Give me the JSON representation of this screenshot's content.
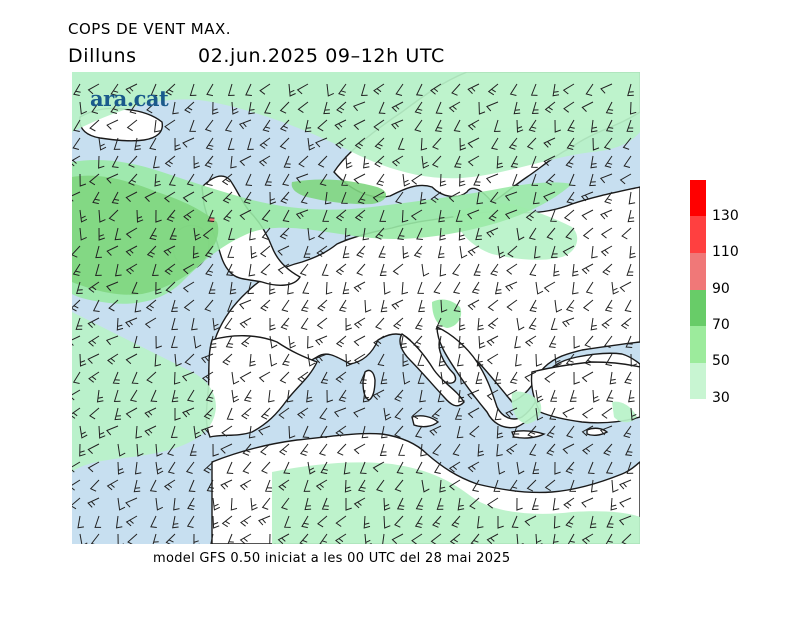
{
  "header": {
    "title": "COPS DE VENT MAX.",
    "day": "Dilluns",
    "date_time": "02.jun.2025  09–12h  UTC"
  },
  "logo": {
    "text": "ara.cat"
  },
  "footer": {
    "text": "model GFS 0.50 iniciat a les 00 UTC del 28 mai 2025"
  },
  "legend": {
    "levels": [
      "130",
      "110",
      "90",
      "70",
      "50",
      "30"
    ],
    "colors": [
      "#ff0000",
      "#ff4040",
      "#f07878",
      "#68cc68",
      "#9ceb9c",
      "#c8f5d2"
    ]
  },
  "map": {
    "colors": {
      "sea": "#c7dff0",
      "land": "#ffffff",
      "gust_30_50": "#b8f2c8",
      "gust_50_70": "#9aeaa6",
      "gust_70_90": "#7fd67f",
      "gust_90_110": "#f07878",
      "coast": "#1a1a1a",
      "barb": "#222222"
    }
  }
}
